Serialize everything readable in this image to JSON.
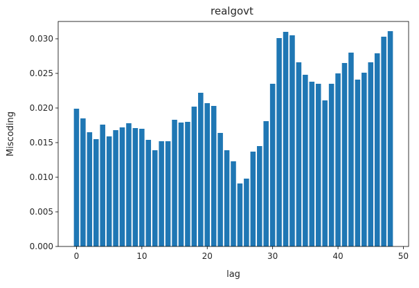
{
  "chart_data": {
    "type": "bar",
    "title": "realgovt",
    "xlabel": "lag",
    "ylabel": "Miscoding",
    "bar_color": "#1f77b4",
    "xlim": [
      -2.8,
      50.8
    ],
    "ylim": [
      0,
      0.0325
    ],
    "xticks": [
      0,
      10,
      20,
      30,
      40,
      50
    ],
    "yticks": [
      0.0,
      0.005,
      0.01,
      0.015,
      0.02,
      0.025,
      0.03
    ],
    "xtick_labels": [
      "0",
      "10",
      "20",
      "30",
      "40",
      "50"
    ],
    "ytick_labels": [
      "0.000",
      "0.005",
      "0.010",
      "0.015",
      "0.020",
      "0.025",
      "0.030"
    ],
    "grid": false,
    "x": [
      0,
      1,
      2,
      3,
      4,
      5,
      6,
      7,
      8,
      9,
      10,
      11,
      12,
      13,
      14,
      15,
      16,
      17,
      18,
      19,
      20,
      21,
      22,
      23,
      24,
      25,
      26,
      27,
      28,
      29,
      30,
      31,
      32,
      33,
      34,
      35,
      36,
      37,
      38,
      39,
      40,
      41,
      42,
      43,
      44,
      45,
      46,
      47,
      48
    ],
    "values": [
      0.0199,
      0.0185,
      0.0165,
      0.0155,
      0.0176,
      0.0159,
      0.0168,
      0.0172,
      0.0178,
      0.0171,
      0.017,
      0.0154,
      0.0139,
      0.0152,
      0.0152,
      0.0183,
      0.0179,
      0.018,
      0.0202,
      0.0222,
      0.0207,
      0.0203,
      0.0164,
      0.0139,
      0.0123,
      0.0091,
      0.0098,
      0.0137,
      0.0145,
      0.0181,
      0.0235,
      0.0301,
      0.031,
      0.0305,
      0.0266,
      0.0248,
      0.0238,
      0.0235,
      0.0211,
      0.0235,
      0.025,
      0.0265,
      0.028,
      0.0241,
      0.0251,
      0.0266,
      0.0279,
      0.0303,
      0.0311
    ]
  }
}
